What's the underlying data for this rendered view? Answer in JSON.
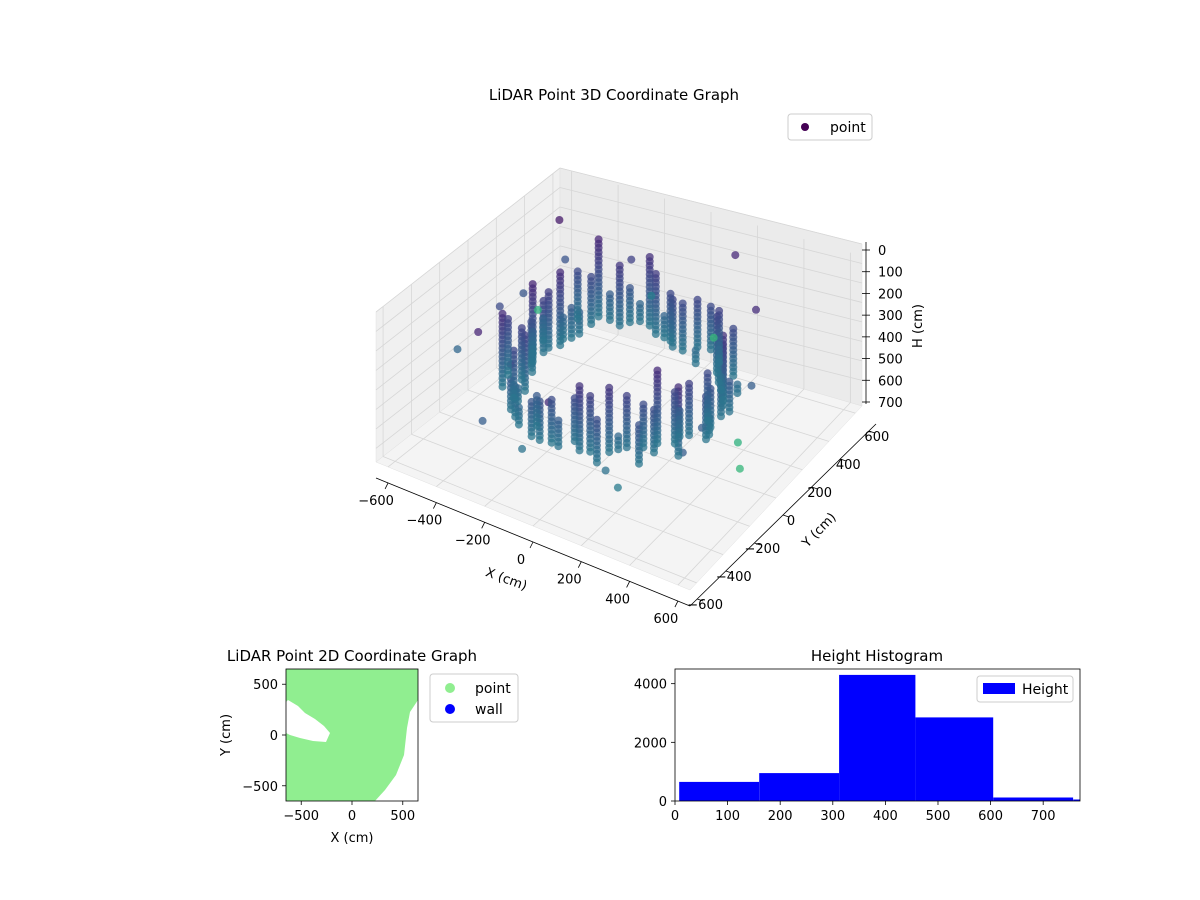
{
  "colors": {
    "point_2d": "#90ee90",
    "wall_2d": "#0000ff",
    "histogram": "#0000ff",
    "legend_point_3d": "#440154",
    "pane": "#f2f2f2",
    "grid": "#d0d0d0"
  },
  "chart_data": [
    {
      "type": "scatter",
      "projection": "3d",
      "title": "LiDAR Point 3D Coordinate Graph",
      "xlabel": "X (cm)",
      "ylabel": "Y (cm)",
      "zlabel": "H (cm)",
      "x_ticks": [
        "−600",
        "−400",
        "−200",
        "0",
        "200",
        "400",
        "600"
      ],
      "y_ticks": [
        "−600",
        "−400",
        "−200",
        "0",
        "200",
        "400",
        "600"
      ],
      "z_ticks": [
        "0",
        "100",
        "200",
        "300",
        "400",
        "500",
        "600",
        "700"
      ],
      "xlim": [
        -650,
        650
      ],
      "ylim": [
        -650,
        650
      ],
      "zlim": [
        0,
        770
      ],
      "z_inverted": true,
      "colormap": "viridis",
      "grid": true,
      "legend": {
        "placement": "top-right",
        "entries": [
          "point"
        ]
      },
      "series": [
        {
          "name": "point",
          "shape": "ring",
          "ring_radius_cm": 380,
          "height_range": [
            0,
            770
          ]
        }
      ]
    },
    {
      "type": "scatter",
      "title": "LiDAR Point 2D Coordinate Graph",
      "xlabel": "X (cm)",
      "ylabel": "Y (cm)",
      "x_ticks": [
        "−500",
        "0",
        "500"
      ],
      "y_ticks": [
        "−500",
        "0",
        "500"
      ],
      "xlim": [
        -650,
        650
      ],
      "ylim": [
        -650,
        650
      ],
      "legend": {
        "placement": "outside-right",
        "entries": [
          "point",
          "wall"
        ]
      },
      "series": [
        {
          "name": "point",
          "color": "#90ee90"
        },
        {
          "name": "wall",
          "color": "#0000ff"
        }
      ]
    },
    {
      "type": "bar",
      "subtype": "histogram",
      "title": "Height Histogram",
      "x_ticks": [
        "0",
        "100",
        "200",
        "300",
        "400",
        "500",
        "600",
        "700"
      ],
      "y_ticks": [
        "0",
        "2000",
        "4000"
      ],
      "xlim": [
        0,
        770
      ],
      "ylim": [
        0,
        4500
      ],
      "bin_edges": [
        8,
        160,
        312,
        457,
        605,
        757,
        770
      ],
      "values": [
        650,
        950,
        4300,
        2850,
        120,
        50
      ],
      "legend": {
        "placement": "top-right",
        "entries": [
          "Height"
        ]
      },
      "series": [
        {
          "name": "Height",
          "color": "#0000ff"
        }
      ]
    }
  ]
}
